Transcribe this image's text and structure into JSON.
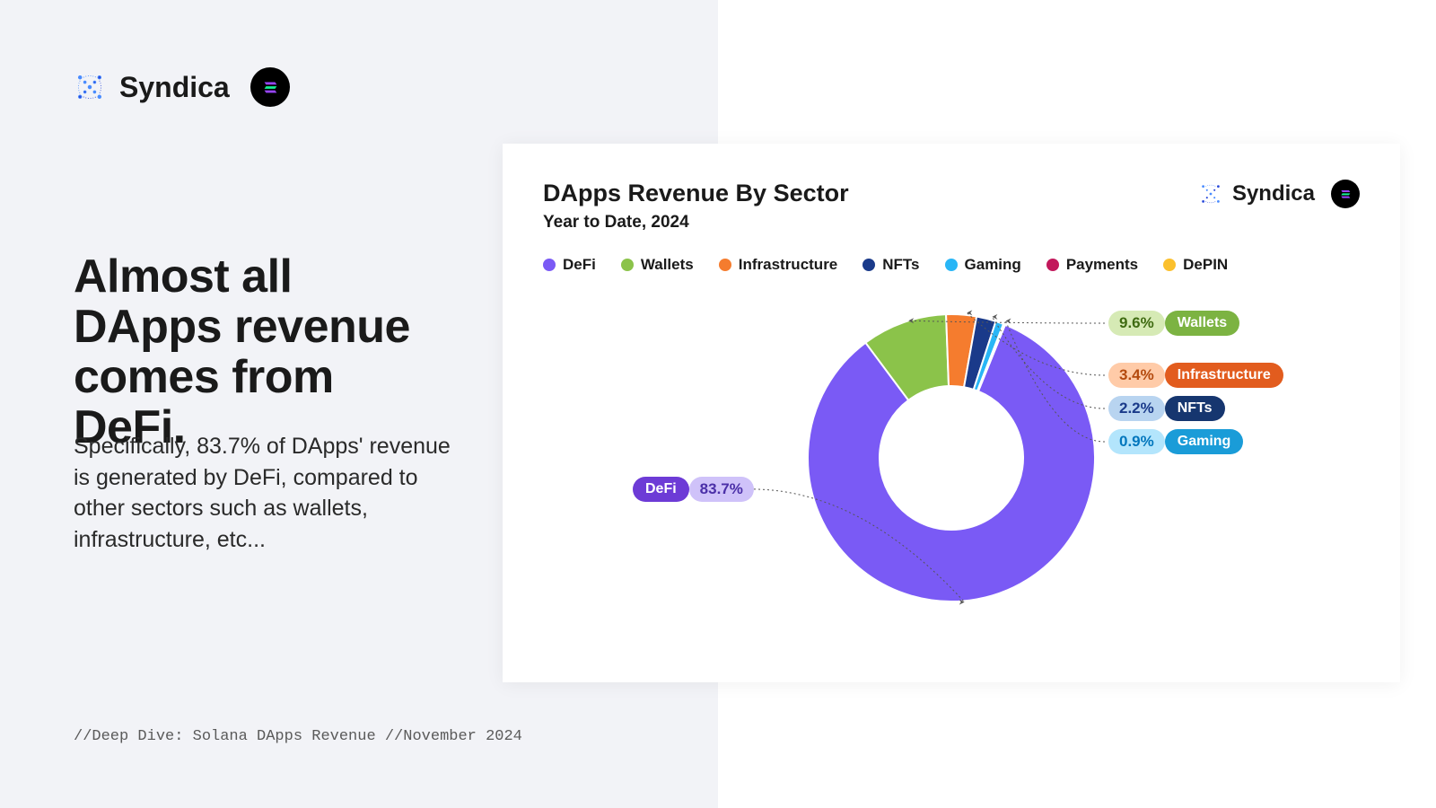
{
  "brand": {
    "name": "Syndica",
    "icon_color_1": "#4a8cff",
    "icon_color_2": "#2b4bdb"
  },
  "headline": "Almost all DApps revenue comes from DeFi.",
  "body": "Specifically, 83.7% of DApps' revenue is generated by DeFi, compared to other sectors such as wallets, infrastructure, etc...",
  "footer": "//Deep Dive: Solana DApps Revenue //November 2024",
  "chart": {
    "title": "DApps Revenue By Sector",
    "subtitle": "Year to Date, 2024",
    "type": "donut",
    "background_color": "#ffffff",
    "inner_radius": 80,
    "outer_radius": 160,
    "legend": [
      {
        "label": "DeFi",
        "color": "#7a5af5"
      },
      {
        "label": "Wallets",
        "color": "#8bc34a"
      },
      {
        "label": "Infrastructure",
        "color": "#f57c2e"
      },
      {
        "label": "NFTs",
        "color": "#1a3a8a"
      },
      {
        "label": "Gaming",
        "color": "#29b6f6"
      },
      {
        "label": "Payments",
        "color": "#c2185b"
      },
      {
        "label": "DePIN",
        "color": "#fbc02d"
      }
    ],
    "slices": [
      {
        "label": "DeFi",
        "value": 83.7,
        "color": "#7a5af5"
      },
      {
        "label": "Wallets",
        "value": 9.6,
        "color": "#8bc34a"
      },
      {
        "label": "Infrastructure",
        "value": 3.4,
        "color": "#f57c2e"
      },
      {
        "label": "NFTs",
        "value": 2.2,
        "color": "#1a3a8a"
      },
      {
        "label": "Gaming",
        "value": 0.9,
        "color": "#29b6f6"
      },
      {
        "label": "Payments",
        "value": 0.1,
        "color": "#c2185b"
      },
      {
        "label": "DePIN",
        "value": 0.1,
        "color": "#fbc02d"
      }
    ],
    "callouts": [
      {
        "label": "DeFi",
        "pct": "83.7%",
        "pct_bg": "#cfc2f9",
        "pct_color": "#4b2fa8",
        "label_bg": "#6d3bd6",
        "side": "left"
      },
      {
        "label": "Wallets",
        "pct": "9.6%",
        "pct_bg": "#d6eab5",
        "pct_color": "#3f6b12",
        "label_bg": "#7cb342",
        "side": "right"
      },
      {
        "label": "Infrastructure",
        "pct": "3.4%",
        "pct_bg": "#ffcba8",
        "pct_color": "#b44a0e",
        "label_bg": "#e25c1e",
        "side": "right"
      },
      {
        "label": "NFTs",
        "pct": "2.2%",
        "pct_bg": "#b8d4f0",
        "pct_color": "#1a3a8a",
        "label_bg": "#16366f",
        "side": "right"
      },
      {
        "label": "Gaming",
        "pct": "0.9%",
        "pct_bg": "#b3e5fc",
        "pct_color": "#0277bd",
        "label_bg": "#1a9cd8",
        "side": "right"
      }
    ]
  }
}
